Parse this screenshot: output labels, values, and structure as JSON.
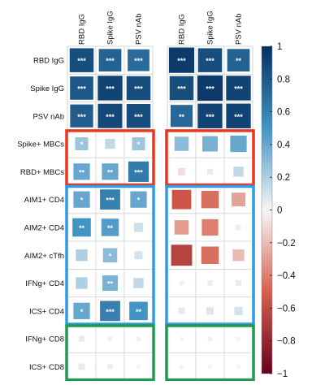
{
  "chart_data": {
    "type": "heatmap",
    "title": "",
    "panels": [
      {
        "columns": [
          "RBD IgG",
          "Spike IgG",
          "PSV nAb"
        ],
        "values": [
          [
            0.85,
            0.75,
            0.7
          ],
          [
            0.8,
            0.9,
            0.85
          ],
          [
            0.78,
            0.88,
            0.85
          ],
          [
            0.25,
            0.15,
            0.25
          ],
          [
            0.4,
            0.4,
            0.62
          ],
          [
            0.4,
            0.6,
            0.4
          ],
          [
            0.5,
            0.45,
            0.12
          ],
          [
            0.2,
            0.3,
            0.1
          ],
          [
            0.2,
            0.35,
            0.15
          ],
          [
            0.4,
            0.6,
            0.5
          ],
          [
            0.05,
            0.03,
            0.03
          ],
          [
            0.06,
            0.04,
            0.02
          ]
        ],
        "significance": [
          [
            "***",
            "***",
            "***"
          ],
          [
            "***",
            "***",
            "***"
          ],
          [
            "***",
            "***",
            "***"
          ],
          [
            "*",
            "",
            "*"
          ],
          [
            "**",
            "**",
            "***"
          ],
          [
            "*",
            "***",
            "*"
          ],
          [
            "**",
            "**",
            ""
          ],
          [
            "",
            "*",
            ""
          ],
          [
            "",
            "**",
            ""
          ],
          [
            "*",
            "***",
            "**"
          ],
          [
            "",
            "",
            ""
          ],
          [
            "",
            "",
            ""
          ]
        ]
      },
      {
        "columns": [
          "RBD IgG",
          "Spike IgG",
          "PSV nAb"
        ],
        "values": [
          [
            0.95,
            0.85,
            0.75
          ],
          [
            0.85,
            0.95,
            0.9
          ],
          [
            0.72,
            0.9,
            0.9
          ],
          [
            0.3,
            0.35,
            0.4
          ],
          [
            -0.08,
            -0.05,
            0.15
          ],
          [
            -0.55,
            -0.45,
            -0.28
          ],
          [
            -0.3,
            -0.4,
            0.04
          ],
          [
            -0.65,
            -0.45,
            -0.2
          ],
          [
            0.03,
            0.04,
            0.05
          ],
          [
            0.06,
            0.08,
            0.1
          ],
          [
            0.02,
            0.03,
            0.02
          ],
          [
            0.02,
            0.02,
            0.02
          ]
        ],
        "significance": [
          [
            "***",
            "***",
            "**"
          ],
          [
            "***",
            "***",
            "***"
          ],
          [
            "**",
            "***",
            "***"
          ],
          [
            "",
            "",
            ""
          ],
          [
            "",
            "",
            ""
          ],
          [
            "",
            "",
            ""
          ],
          [
            "",
            "",
            ""
          ],
          [
            "",
            "",
            ""
          ],
          [
            "",
            "",
            ""
          ],
          [
            "",
            "",
            ""
          ],
          [
            "",
            "",
            ""
          ],
          [
            "",
            "",
            ""
          ]
        ]
      }
    ],
    "rows": [
      "RBD IgG",
      "Spike IgG",
      "PSV nAb",
      "Spike+ MBCs",
      "RBD+ MBCs",
      "AIM1+ CD4",
      "AIM2+ CD4",
      "AIM2+ cTfh",
      "IFNg+ CD4",
      "ICS+ CD4",
      "IFNg+ CD8",
      "ICS+ CD8"
    ],
    "colorbar": {
      "range": [
        -1,
        1
      ],
      "ticks": [
        1,
        0.8,
        0.6,
        0.4,
        0.2,
        0,
        -0.2,
        -0.4,
        -0.6,
        -0.8,
        -1
      ],
      "tick_labels": [
        "1",
        "0.8",
        "0.6",
        "0.4",
        "0.2",
        "0",
        "−0.2",
        "−0.4",
        "−0.6",
        "−0.8",
        "−1"
      ],
      "colors": {
        "negative": "#67001f",
        "zero": "#f7f7f7",
        "positive": "#053061"
      }
    },
    "highlight_groups": [
      {
        "rows": [
          3,
          4
        ],
        "color": "#e8371e"
      },
      {
        "rows": [
          5,
          6,
          7,
          8,
          9
        ],
        "color": "#2e9be6"
      },
      {
        "rows": [
          10,
          11
        ],
        "color": "#1f9a4f"
      }
    ]
  }
}
